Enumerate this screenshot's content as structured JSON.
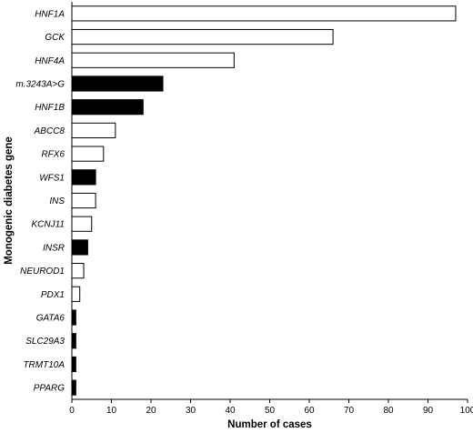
{
  "chart_data": {
    "type": "bar",
    "orientation": "horizontal",
    "categories": [
      "HNF1A",
      "GCK",
      "HNF4A",
      "m.3243A>G",
      "HNF1B",
      "ABCC8",
      "RFX6",
      "WFS1",
      "INS",
      "KCNJ11",
      "INSR",
      "NEUROD1",
      "PDX1",
      "GATA6",
      "SLC29A3",
      "TRMT10A",
      "PPARG"
    ],
    "values": [
      97,
      66,
      41,
      23,
      18,
      11,
      8,
      6,
      6,
      5,
      4,
      3,
      2,
      1,
      1,
      1,
      1
    ],
    "bar_fill": [
      "white",
      "white",
      "white",
      "black",
      "black",
      "white",
      "white",
      "black",
      "white",
      "white",
      "black",
      "white",
      "white",
      "black",
      "black",
      "black",
      "black"
    ],
    "xlabel": "Number of cases",
    "ylabel": "Monogenic diabetes gene",
    "xlim": [
      0,
      100
    ],
    "xticks": [
      0,
      10,
      20,
      30,
      40,
      50,
      60,
      70,
      80,
      90,
      100
    ],
    "grid": false,
    "colors": {
      "filled": "#000000",
      "open": "#ffffff",
      "stroke": "#000000"
    }
  }
}
